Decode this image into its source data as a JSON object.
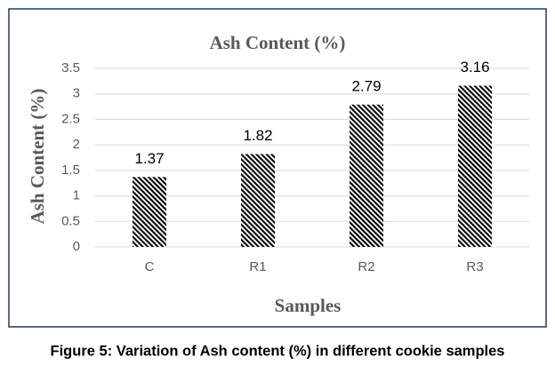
{
  "chart_data": {
    "type": "bar",
    "title": "Ash Content (%)",
    "x_label": "Samples",
    "y_label": "Ash Content (%)",
    "categories": [
      "C",
      "R1",
      "R2",
      "R3"
    ],
    "values": [
      1.37,
      1.82,
      2.79,
      3.16
    ],
    "color": "#000000",
    "ylim": [
      0,
      3.5
    ],
    "yticks": [
      0,
      0.5,
      1,
      1.5,
      2,
      2.5,
      3,
      3.5
    ],
    "grid": true
  },
  "caption": "Figure 5: Variation of Ash content (%) in different cookie samples"
}
